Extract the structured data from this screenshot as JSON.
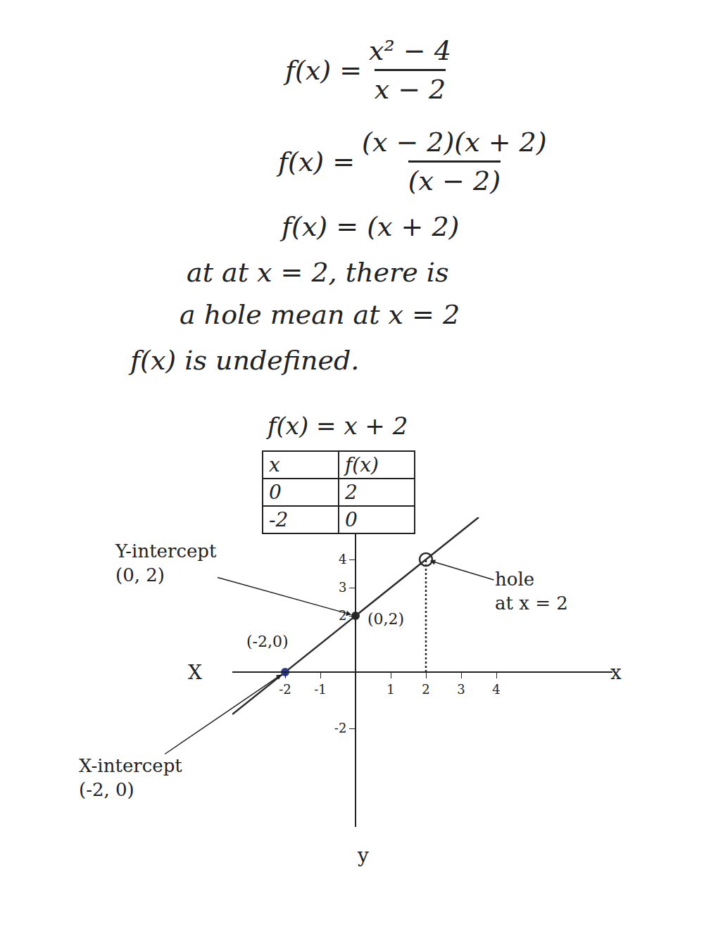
{
  "document": {
    "equations": [
      {
        "lhs": "f(x) =",
        "numerator": "x² − 4",
        "denominator": "x − 2"
      },
      {
        "lhs": "f(x) =",
        "numerator": "(x − 2)(x + 2)",
        "denominator": "(x − 2)"
      }
    ],
    "simplified": "f(x) = (x + 2)",
    "notes": [
      "at at x = 2, there is",
      "a hole mean at x = 2",
      "f(x) is undefined."
    ],
    "table": {
      "title": "f(x) = x + 2",
      "header": [
        "x",
        "f(x)"
      ],
      "rows": [
        [
          0,
          2
        ],
        [
          -2,
          0
        ]
      ]
    }
  },
  "chart_data": {
    "type": "line",
    "xlim": [
      -3.5,
      7.3
    ],
    "ylim": [
      -5.5,
      5.5
    ],
    "xticks": [
      -2,
      -1,
      1,
      2,
      3,
      4
    ],
    "yticks": [
      -2,
      2,
      3,
      4
    ],
    "grid": false,
    "axis_labels": {
      "x": "x",
      "x_left": "X",
      "y": "y"
    },
    "series": [
      {
        "type": "line",
        "x": [
          -3.5,
          -2,
          0,
          2,
          3.5
        ],
        "values": [
          -1.5,
          0,
          2,
          4,
          5.5
        ],
        "color": "#2b2b2b",
        "line_style": "solid"
      },
      {
        "type": "line",
        "x": [
          2,
          2
        ],
        "values": [
          0,
          4
        ],
        "color": "#2b2b2b",
        "line_style": "dotted"
      },
      {
        "type": "scatter",
        "x": [
          0
        ],
        "values": [
          2
        ],
        "color": "#2b2b2b",
        "marker": "filled"
      },
      {
        "type": "scatter",
        "x": [
          -2
        ],
        "values": [
          0
        ],
        "color": "#2a3b8f",
        "marker": "filled"
      },
      {
        "type": "scatter",
        "x": [
          2
        ],
        "values": [
          4
        ],
        "color": "#2b2b2b",
        "marker": "open"
      }
    ],
    "annotations": [
      {
        "text": "Y-intercept\n(0, 2)",
        "x": 0,
        "y": 2,
        "arrow": true
      },
      {
        "text": "X-intercept\n(-2, 0)",
        "x": -2,
        "y": 0,
        "arrow": true
      },
      {
        "text": "hole\nat x = 2",
        "x": 2,
        "y": 4,
        "arrow": true
      },
      {
        "text": "(0,2)",
        "x": 0.85,
        "y": 1.9,
        "arrow": false
      },
      {
        "text": "(-2,0)",
        "x": -2.5,
        "y": 1.1,
        "arrow": false
      }
    ]
  }
}
